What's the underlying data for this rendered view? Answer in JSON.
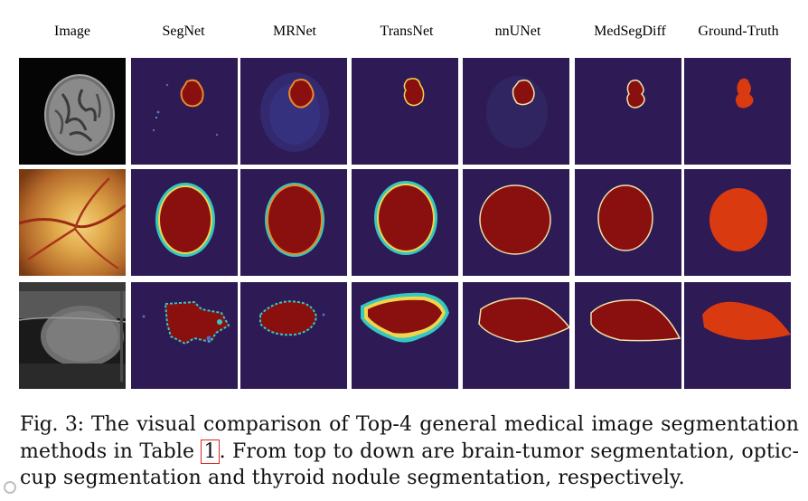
{
  "columns": [
    "Image",
    "SegNet",
    "MRNet",
    "TransNet",
    "nnUNet",
    "MedSegDiff",
    "Ground-Truth"
  ],
  "rows": [
    "brain-tumor",
    "optic-cup",
    "thyroid-nodule"
  ],
  "caption": {
    "label": "Fig. 3:",
    "text_before_ref": "The visual comparison of Top-4 general medical image segmentation methods in Table",
    "ref": "1",
    "text_after_ref": ". From top to down are brain-tumor segmentation, optic-cup segmentation and thyroid nodule segmentation, respectively."
  },
  "colors": {
    "background_map": "#2e1a55",
    "prediction": "#8a0f0f",
    "ground_truth_fill": "#d93a10",
    "uncertainty_edge": "#35c7c2"
  }
}
